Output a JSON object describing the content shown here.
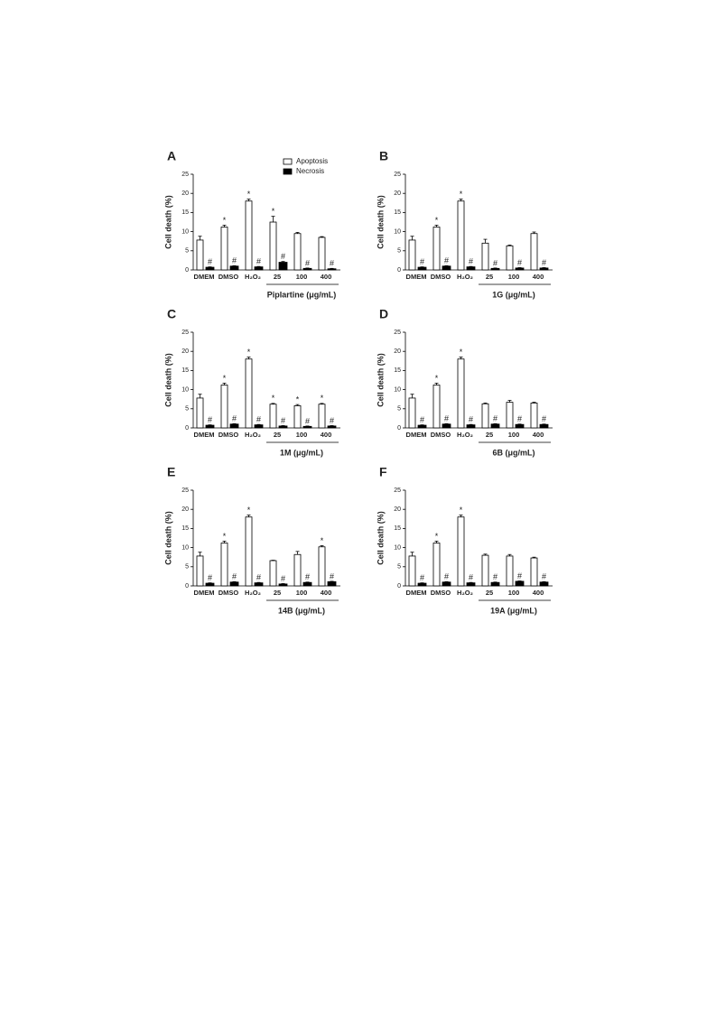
{
  "chart_data": [
    {
      "type": "bar",
      "title": "A",
      "ylabel": "Cell death (%)",
      "categories": [
        "DMEM",
        "DMSO",
        "H₂O₂",
        "25",
        "100",
        "400"
      ],
      "group_label": "Piplartine (μg/mL)",
      "ylim": [
        0,
        25
      ],
      "yticks": [
        0,
        5,
        10,
        15,
        20,
        25
      ],
      "legend": true,
      "series": [
        {
          "name": "Apoptosis",
          "color": "#ffffff",
          "values": [
            7.8,
            11.2,
            18,
            12.5,
            9.5,
            8.5
          ],
          "errors": [
            1,
            0.5,
            0.5,
            1.5,
            0.3,
            0.2
          ],
          "markers": [
            null,
            "*",
            "*",
            "*",
            null,
            null
          ]
        },
        {
          "name": "Necrosis",
          "color": "#000000",
          "values": [
            0.7,
            1,
            0.8,
            2,
            0.4,
            0.3
          ],
          "errors": [
            0.1,
            0.1,
            0.1,
            0.2,
            0.1,
            0.1
          ],
          "markers": [
            "#",
            "#",
            "#",
            "#",
            "#",
            "#"
          ]
        }
      ]
    },
    {
      "type": "bar",
      "title": "B",
      "ylabel": "Cell death (%)",
      "categories": [
        "DMEM",
        "DMSO",
        "H₂O₂",
        "25",
        "100",
        "400"
      ],
      "group_label": "1G (μg/mL)",
      "ylim": [
        0,
        25
      ],
      "yticks": [
        0,
        5,
        10,
        15,
        20,
        25
      ],
      "legend": false,
      "series": [
        {
          "color": "#ffffff",
          "values": [
            7.8,
            11.2,
            18,
            7,
            6.3,
            9.5
          ],
          "errors": [
            1,
            0.5,
            0.5,
            1,
            0.2,
            0.4
          ],
          "markers": [
            null,
            "*",
            "*",
            null,
            null,
            null
          ]
        },
        {
          "color": "#000000",
          "values": [
            0.7,
            1,
            0.8,
            0.4,
            0.5,
            0.5
          ],
          "errors": [
            0.1,
            0.1,
            0.1,
            0.1,
            0.1,
            0.1
          ],
          "markers": [
            "#",
            "#",
            "#",
            "#",
            "#",
            "#"
          ]
        }
      ]
    },
    {
      "type": "bar",
      "title": "C",
      "ylabel": "Cell death (%)",
      "categories": [
        "DMEM",
        "DMSO",
        "H₂O₂",
        "25",
        "100",
        "400"
      ],
      "group_label": "1M (μg/mL)",
      "ylim": [
        0,
        25
      ],
      "yticks": [
        0,
        5,
        10,
        15,
        20,
        25
      ],
      "legend": false,
      "series": [
        {
          "color": "#ffffff",
          "values": [
            7.8,
            11.2,
            18,
            6.2,
            5.8,
            6.2
          ],
          "errors": [
            1,
            0.5,
            0.5,
            0.2,
            0.3,
            0.2
          ],
          "markers": [
            null,
            "*",
            "*",
            "*",
            "*",
            "*"
          ]
        },
        {
          "color": "#000000",
          "values": [
            0.7,
            1,
            0.8,
            0.5,
            0.4,
            0.5
          ],
          "errors": [
            0.1,
            0.1,
            0.1,
            0.1,
            0.1,
            0.1
          ],
          "markers": [
            "#",
            "#",
            "#",
            "#",
            "#",
            "#"
          ]
        }
      ]
    },
    {
      "type": "bar",
      "title": "D",
      "ylabel": "Cell death (%)",
      "categories": [
        "DMEM",
        "DMSO",
        "H₂O₂",
        "25",
        "100",
        "400"
      ],
      "group_label": "6B (μg/mL)",
      "ylim": [
        0,
        25
      ],
      "yticks": [
        0,
        5,
        10,
        15,
        20,
        25
      ],
      "legend": false,
      "series": [
        {
          "color": "#ffffff",
          "values": [
            7.8,
            11.2,
            18,
            6.3,
            6.7,
            6.5
          ],
          "errors": [
            1,
            0.5,
            0.5,
            0.2,
            0.5,
            0.2
          ],
          "markers": [
            null,
            "*",
            "*",
            null,
            null,
            null
          ]
        },
        {
          "color": "#000000",
          "values": [
            0.7,
            1,
            0.8,
            1,
            0.9,
            0.9
          ],
          "errors": [
            0.1,
            0.1,
            0.1,
            0.1,
            0.1,
            0.1
          ],
          "markers": [
            "#",
            "#",
            "#",
            "#",
            "#",
            "#"
          ]
        }
      ]
    },
    {
      "type": "bar",
      "title": "E",
      "ylabel": "Cell death (%)",
      "categories": [
        "DMEM",
        "DMSO",
        "H₂O₂",
        "25",
        "100",
        "400"
      ],
      "group_label": "14B (μg/mL)",
      "ylim": [
        0,
        25
      ],
      "yticks": [
        0,
        5,
        10,
        15,
        20,
        25
      ],
      "legend": false,
      "series": [
        {
          "color": "#ffffff",
          "values": [
            7.8,
            11.2,
            18,
            6.6,
            8.2,
            10.2
          ],
          "errors": [
            1,
            0.5,
            0.5,
            0.1,
            0.8,
            0.3
          ],
          "markers": [
            null,
            "*",
            "*",
            null,
            null,
            "*"
          ]
        },
        {
          "color": "#000000",
          "values": [
            0.7,
            1,
            0.8,
            0.5,
            0.9,
            1.1
          ],
          "errors": [
            0.1,
            0.1,
            0.1,
            0.1,
            0.1,
            0.1
          ],
          "markers": [
            "#",
            "#",
            "#",
            "#",
            "#",
            "#"
          ]
        }
      ]
    },
    {
      "type": "bar",
      "title": "F",
      "ylabel": "Cell death (%)",
      "categories": [
        "DMEM",
        "DMSO",
        "H₂O₂",
        "25",
        "100",
        "400"
      ],
      "group_label": "19A (μg/mL)",
      "ylim": [
        0,
        25
      ],
      "yticks": [
        0,
        5,
        10,
        15,
        20,
        25
      ],
      "legend": false,
      "series": [
        {
          "color": "#ffffff",
          "values": [
            7.8,
            11.2,
            18,
            8,
            7.8,
            7.3
          ],
          "errors": [
            1,
            0.5,
            0.5,
            0.3,
            0.4,
            0.2
          ],
          "markers": [
            null,
            "*",
            "*",
            null,
            null,
            null
          ]
        },
        {
          "color": "#000000",
          "values": [
            0.7,
            1,
            0.8,
            0.9,
            1.2,
            1
          ],
          "errors": [
            0.1,
            0.1,
            0.1,
            0.1,
            0.1,
            0.1
          ],
          "markers": [
            "#",
            "#",
            "#",
            "#",
            "#",
            "#"
          ]
        }
      ]
    }
  ]
}
